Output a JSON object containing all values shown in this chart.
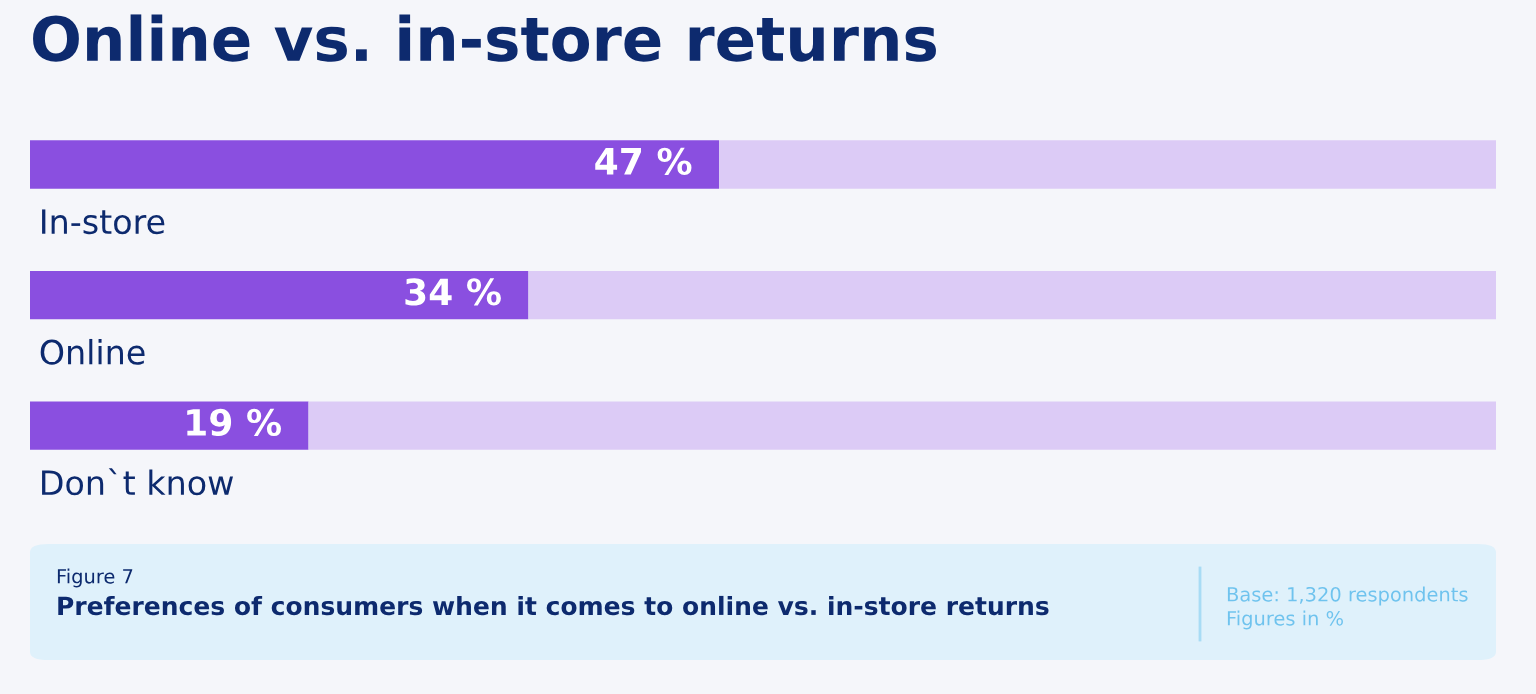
{
  "chart_data": {
    "type": "bar",
    "orientation": "horizontal",
    "stacked": true,
    "title": "Online vs. in-store returns",
    "categories": [
      "In-store",
      "Online",
      "Don`t know"
    ],
    "series": [
      {
        "color": "#8a4fe0",
        "values": [
          47,
          34,
          19
        ],
        "value_labels": [
          "47 %",
          "34 %",
          "19 %"
        ]
      },
      {
        "color": "#dccbf6",
        "values": [
          53,
          66,
          81
        ]
      }
    ],
    "xlim": [
      0,
      100
    ],
    "tick_labels": false,
    "legend": false,
    "annotations": [
      "Figure 7",
      "Preferences of consumers when it comes to online vs. in-store returns",
      "Base: 1,320 respondents",
      "Figures in %"
    ]
  }
}
